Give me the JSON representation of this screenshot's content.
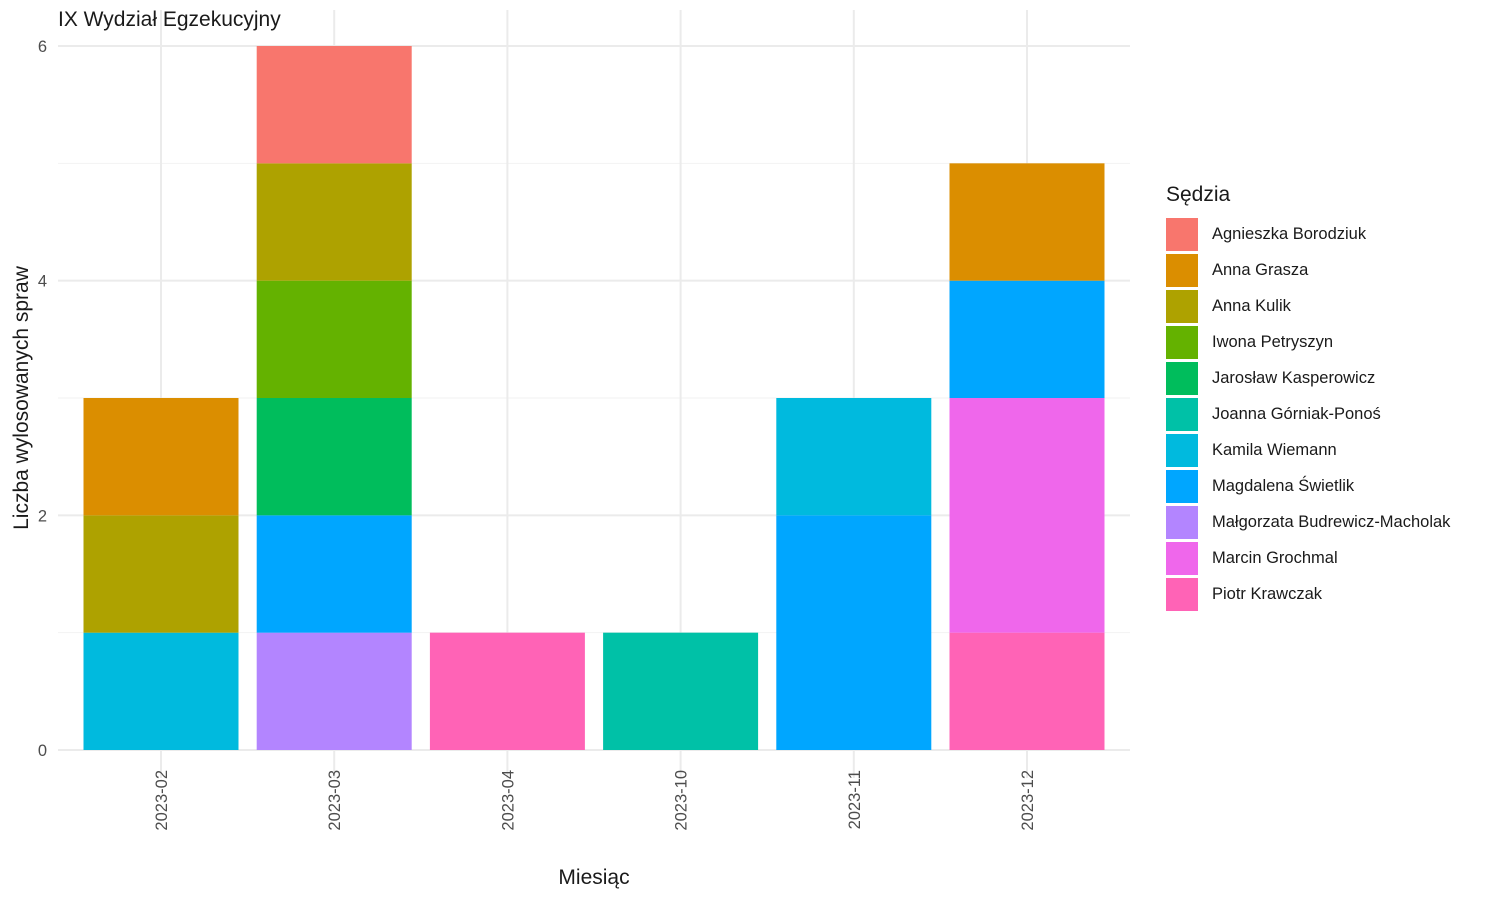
{
  "chart_data": {
    "type": "bar",
    "stacked": true,
    "title": "IX Wydział Egzekucyjny",
    "xlabel": "Miesiąc",
    "ylabel": "Liczba wylosowanych spraw",
    "ylim": [
      0,
      6
    ],
    "yticks": [
      "0",
      "2",
      "4",
      "6"
    ],
    "grid": true,
    "legend_position": "right",
    "legend_title": "Sędzia",
    "categories": [
      "2023-02",
      "2023-03",
      "2023-04",
      "2023-10",
      "2023-11",
      "2023-12"
    ],
    "series": [
      {
        "name": "Agnieszka Borodziuk",
        "color": "#F8766D",
        "values": [
          0,
          1,
          0,
          0,
          0,
          0
        ]
      },
      {
        "name": "Anna Grasza",
        "color": "#DB8E00",
        "values": [
          1,
          0,
          0,
          0,
          0,
          1
        ]
      },
      {
        "name": "Anna Kulik",
        "color": "#AEA200",
        "values": [
          1,
          1,
          0,
          0,
          0,
          0
        ]
      },
      {
        "name": "Iwona Petryszyn",
        "color": "#64B200",
        "values": [
          0,
          1,
          0,
          0,
          0,
          0
        ]
      },
      {
        "name": "Jarosław Kasperowicz",
        "color": "#00BD5C",
        "values": [
          0,
          1,
          0,
          0,
          0,
          0
        ]
      },
      {
        "name": "Joanna Górniak-Ponoś",
        "color": "#00C1A7",
        "values": [
          0,
          0,
          0,
          1,
          0,
          0
        ]
      },
      {
        "name": "Kamila Wiemann",
        "color": "#00BADE",
        "values": [
          1,
          0,
          0,
          0,
          1,
          0
        ]
      },
      {
        "name": "Magdalena Świetlik",
        "color": "#00A6FF",
        "values": [
          0,
          1,
          0,
          0,
          2,
          1
        ]
      },
      {
        "name": "Małgorzata Budrewicz-Macholak",
        "color": "#B385FF",
        "values": [
          0,
          1,
          0,
          0,
          0,
          0
        ]
      },
      {
        "name": "Marcin Grochmal",
        "color": "#EF67EB",
        "values": [
          0,
          0,
          0,
          0,
          0,
          2
        ]
      },
      {
        "name": "Piotr Krawczak",
        "color": "#FF63B6",
        "values": [
          0,
          0,
          1,
          0,
          0,
          1
        ]
      }
    ]
  }
}
